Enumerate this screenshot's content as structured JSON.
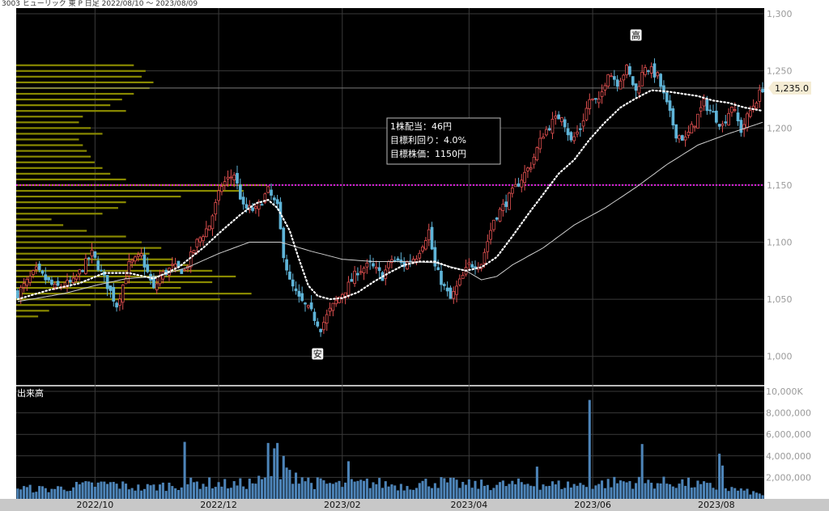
{
  "header": {
    "title": "3003 ヒューリック 東 P 日足 2022/08/10 〜 2023/08/09"
  },
  "colors": {
    "background": "#000000",
    "up": "#e05050",
    "down": "#5fb4d8",
    "ma_short": "#ffffff",
    "ma_long": "#cfcfcf",
    "target_line": "#e020e0",
    "volume_profile": "#8a8a00",
    "volume": "#4d84b8",
    "price_tag": "#f4ecd4"
  },
  "chart_data": {
    "type": "candlestick",
    "title": "3003 ヒューリック 東 P 日足 2022/08/10 〜 2023/08/09",
    "price_axis": {
      "ylim": [
        975,
        1305
      ],
      "ticks": [
        {
          "v": 1000,
          "label": "1,000"
        },
        {
          "v": 1050,
          "label": "1,050"
        },
        {
          "v": 1100,
          "label": "1,100"
        },
        {
          "v": 1150,
          "label": "1,150"
        },
        {
          "v": 1200,
          "label": "1,200"
        },
        {
          "v": 1250,
          "label": "1,250"
        },
        {
          "v": 1300,
          "label": "1,300"
        }
      ]
    },
    "volume_axis": {
      "label": "出来高",
      "ylim": [
        0,
        10000000
      ],
      "ticks": [
        {
          "v": 2000000,
          "label": "2,000,000"
        },
        {
          "v": 4000000,
          "label": "4,000,000"
        },
        {
          "v": 6000000,
          "label": "6,000,000"
        },
        {
          "v": 8000000,
          "label": "8,000,000"
        },
        {
          "v": 10000000,
          "label": "10,000K"
        }
      ]
    },
    "x_ticks": [
      {
        "i": 25,
        "label": "2022/10"
      },
      {
        "i": 65,
        "label": "2022/12"
      },
      {
        "i": 105,
        "label": "2023/02"
      },
      {
        "i": 146,
        "label": "2023/04"
      },
      {
        "i": 186,
        "label": "2023/06"
      },
      {
        "i": 226,
        "label": "2023/08"
      }
    ],
    "bars": 242,
    "price_key": [
      [
        0,
        1055
      ],
      [
        6,
        1075
      ],
      [
        12,
        1060
      ],
      [
        18,
        1065
      ],
      [
        24,
        1090
      ],
      [
        28,
        1068
      ],
      [
        32,
        1045
      ],
      [
        36,
        1080
      ],
      [
        40,
        1088
      ],
      [
        44,
        1058
      ],
      [
        46,
        1070
      ],
      [
        50,
        1078
      ],
      [
        54,
        1075
      ],
      [
        58,
        1100
      ],
      [
        62,
        1115
      ],
      [
        66,
        1150
      ],
      [
        70,
        1160
      ],
      [
        73,
        1130
      ],
      [
        77,
        1128
      ],
      [
        81,
        1145
      ],
      [
        84,
        1130
      ],
      [
        86,
        1090
      ],
      [
        88,
        1065
      ],
      [
        91,
        1050
      ],
      [
        95,
        1038
      ],
      [
        98,
        1025
      ],
      [
        101,
        1040
      ],
      [
        104,
        1052
      ],
      [
        107,
        1062
      ],
      [
        110,
        1075
      ],
      [
        114,
        1080
      ],
      [
        118,
        1070
      ],
      [
        121,
        1085
      ],
      [
        125,
        1080
      ],
      [
        129,
        1088
      ],
      [
        133,
        1110
      ],
      [
        135,
        1078
      ],
      [
        138,
        1060
      ],
      [
        140,
        1050
      ],
      [
        143,
        1065
      ],
      [
        146,
        1080
      ],
      [
        150,
        1082
      ],
      [
        154,
        1120
      ],
      [
        158,
        1135
      ],
      [
        162,
        1152
      ],
      [
        166,
        1168
      ],
      [
        170,
        1195
      ],
      [
        173,
        1205
      ],
      [
        176,
        1212
      ],
      [
        179,
        1188
      ],
      [
        182,
        1200
      ],
      [
        185,
        1225
      ],
      [
        188,
        1222
      ],
      [
        191,
        1250
      ],
      [
        194,
        1240
      ],
      [
        197,
        1252
      ],
      [
        200,
        1232
      ],
      [
        203,
        1255
      ],
      [
        207,
        1245
      ],
      [
        210,
        1220
      ],
      [
        213,
        1195
      ],
      [
        216,
        1190
      ],
      [
        219,
        1205
      ],
      [
        222,
        1222
      ],
      [
        225,
        1212
      ],
      [
        228,
        1202
      ],
      [
        231,
        1220
      ],
      [
        234,
        1198
      ],
      [
        237,
        1215
      ],
      [
        241,
        1235
      ]
    ],
    "ma_short_key": [
      [
        0,
        1050
      ],
      [
        10,
        1058
      ],
      [
        20,
        1064
      ],
      [
        28,
        1073
      ],
      [
        36,
        1073
      ],
      [
        44,
        1068
      ],
      [
        52,
        1078
      ],
      [
        60,
        1095
      ],
      [
        66,
        1110
      ],
      [
        72,
        1124
      ],
      [
        77,
        1134
      ],
      [
        81,
        1137
      ],
      [
        84,
        1130
      ],
      [
        88,
        1110
      ],
      [
        91,
        1085
      ],
      [
        94,
        1062
      ],
      [
        97,
        1053
      ],
      [
        101,
        1050
      ],
      [
        105,
        1051
      ],
      [
        110,
        1056
      ],
      [
        115,
        1065
      ],
      [
        120,
        1073
      ],
      [
        125,
        1080
      ],
      [
        130,
        1083
      ],
      [
        135,
        1083
      ],
      [
        140,
        1078
      ],
      [
        145,
        1075
      ],
      [
        150,
        1078
      ],
      [
        155,
        1087
      ],
      [
        160,
        1105
      ],
      [
        165,
        1124
      ],
      [
        170,
        1142
      ],
      [
        175,
        1160
      ],
      [
        180,
        1172
      ],
      [
        185,
        1190
      ],
      [
        190,
        1205
      ],
      [
        195,
        1218
      ],
      [
        200,
        1226
      ],
      [
        205,
        1233
      ],
      [
        210,
        1232
      ],
      [
        215,
        1230
      ],
      [
        220,
        1228
      ],
      [
        225,
        1224
      ],
      [
        230,
        1222
      ],
      [
        235,
        1218
      ],
      [
        241,
        1215
      ]
    ],
    "ma_long_key": [
      [
        0,
        1048
      ],
      [
        15,
        1055
      ],
      [
        25,
        1062
      ],
      [
        35,
        1068
      ],
      [
        45,
        1070
      ],
      [
        55,
        1078
      ],
      [
        65,
        1090
      ],
      [
        75,
        1100
      ],
      [
        85,
        1100
      ],
      [
        95,
        1092
      ],
      [
        105,
        1085
      ],
      [
        115,
        1083
      ],
      [
        125,
        1083
      ],
      [
        135,
        1082
      ],
      [
        145,
        1075
      ],
      [
        150,
        1067
      ],
      [
        155,
        1070
      ],
      [
        160,
        1080
      ],
      [
        170,
        1095
      ],
      [
        180,
        1115
      ],
      [
        190,
        1130
      ],
      [
        200,
        1148
      ],
      [
        210,
        1168
      ],
      [
        220,
        1185
      ],
      [
        230,
        1195
      ],
      [
        241,
        1205
      ]
    ],
    "volume_key": [
      [
        0,
        1000000
      ],
      [
        10,
        900000
      ],
      [
        20,
        1200000
      ],
      [
        30,
        1400000
      ],
      [
        40,
        1000000
      ],
      [
        50,
        1300000
      ],
      [
        60,
        1500000
      ],
      [
        70,
        1300000
      ],
      [
        80,
        1700000
      ],
      [
        85,
        2100000
      ],
      [
        90,
        2400000
      ],
      [
        95,
        1500000
      ],
      [
        105,
        1300000
      ],
      [
        115,
        1500000
      ],
      [
        125,
        1200000
      ],
      [
        135,
        1600000
      ],
      [
        145,
        1300000
      ],
      [
        155,
        1300000
      ],
      [
        165,
        1400000
      ],
      [
        175,
        1300000
      ],
      [
        185,
        1300000
      ],
      [
        195,
        1600000
      ],
      [
        205,
        1500000
      ],
      [
        215,
        1500000
      ],
      [
        225,
        1100000
      ],
      [
        232,
        900000
      ],
      [
        241,
        400000
      ]
    ],
    "volume_spikes": [
      {
        "i": 54,
        "v": 5300000
      },
      {
        "i": 81,
        "v": 5200000
      },
      {
        "i": 83,
        "v": 4700000
      },
      {
        "i": 84,
        "v": 5200000
      },
      {
        "i": 86,
        "v": 4000000
      },
      {
        "i": 107,
        "v": 3500000
      },
      {
        "i": 168,
        "v": 3000000
      },
      {
        "i": 185,
        "v": 9200000
      },
      {
        "i": 202,
        "v": 5100000
      },
      {
        "i": 227,
        "v": 4200000
      },
      {
        "i": 228,
        "v": 3100000
      }
    ],
    "volume_profile": [
      [
        1035,
        28
      ],
      [
        1040,
        42
      ],
      [
        1045,
        95
      ],
      [
        1050,
        260
      ],
      [
        1055,
        300
      ],
      [
        1060,
        210
      ],
      [
        1065,
        250
      ],
      [
        1070,
        280
      ],
      [
        1075,
        250
      ],
      [
        1080,
        220
      ],
      [
        1085,
        200
      ],
      [
        1090,
        170
      ],
      [
        1095,
        185
      ],
      [
        1100,
        160
      ],
      [
        1105,
        140
      ],
      [
        1110,
        90
      ],
      [
        1115,
        60
      ],
      [
        1120,
        45
      ],
      [
        1125,
        110
      ],
      [
        1130,
        130
      ],
      [
        1135,
        140
      ],
      [
        1140,
        210
      ],
      [
        1145,
        290
      ],
      [
        1150,
        320
      ],
      [
        1155,
        140
      ],
      [
        1160,
        120
      ],
      [
        1165,
        110
      ],
      [
        1170,
        100
      ],
      [
        1175,
        95
      ],
      [
        1180,
        90
      ],
      [
        1185,
        85
      ],
      [
        1190,
        80
      ],
      [
        1195,
        110
      ],
      [
        1200,
        95
      ],
      [
        1205,
        80
      ],
      [
        1210,
        85
      ],
      [
        1215,
        140
      ],
      [
        1220,
        120
      ],
      [
        1225,
        135
      ],
      [
        1230,
        150
      ],
      [
        1235,
        170
      ],
      [
        1240,
        175
      ],
      [
        1245,
        160
      ],
      [
        1250,
        165
      ],
      [
        1255,
        150
      ]
    ],
    "target_line": {
      "value": 1150
    },
    "high_marker": {
      "label": "高",
      "i": 200,
      "value": 1275
    },
    "low_marker": {
      "label": "安",
      "i": 97,
      "value": 1010
    },
    "last_price": {
      "value": 1235,
      "label": "1,235.0"
    },
    "annotation": {
      "lines": [
        "1株配当：46円",
        "目標利回り：4.0%",
        "目標株価：1150円"
      ]
    }
  }
}
